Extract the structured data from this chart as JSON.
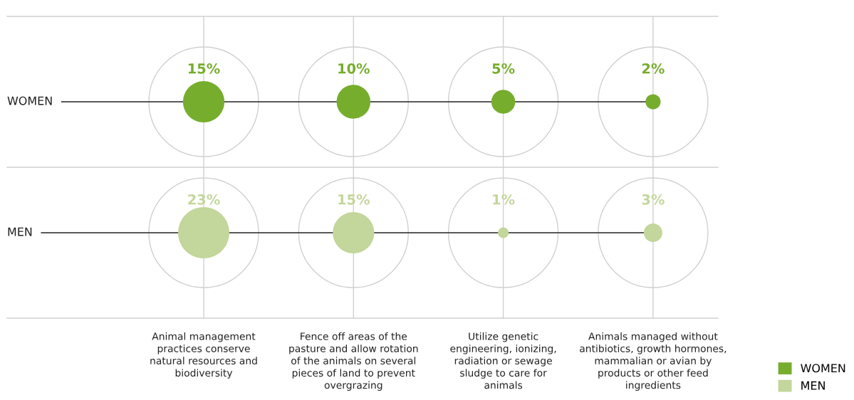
{
  "chart_data": {
    "type": "other",
    "categories": [
      "Animal management\npractices conserve\nnatural resources and\nbiodiversity",
      "Fence off areas of the\npasture and allow rotation\nof the animals on several\npieces of land to prevent\novergrazing",
      "Utilize genetic\nengineering, ionizing,\nradiation or sewage\nsludge to care for\nanimals",
      "Animals managed without\nantibiotics, growth hormones,\nmammalian or avian by\nproducts or other feed\ningredients"
    ],
    "y_categories": [
      "WOMEN",
      "MEN"
    ],
    "series": [
      {
        "name": "WOMEN",
        "color": "#76ad2d",
        "values": [
          15,
          10,
          5,
          2
        ],
        "value_labels": [
          "15%",
          "10%",
          "5%",
          "2%"
        ]
      },
      {
        "name": "MEN",
        "color": "#c3d69b",
        "values": [
          23,
          15,
          1,
          3
        ],
        "value_labels": [
          "23%",
          "15%",
          "1%",
          "3%"
        ]
      }
    ],
    "legend": "bottom right"
  }
}
